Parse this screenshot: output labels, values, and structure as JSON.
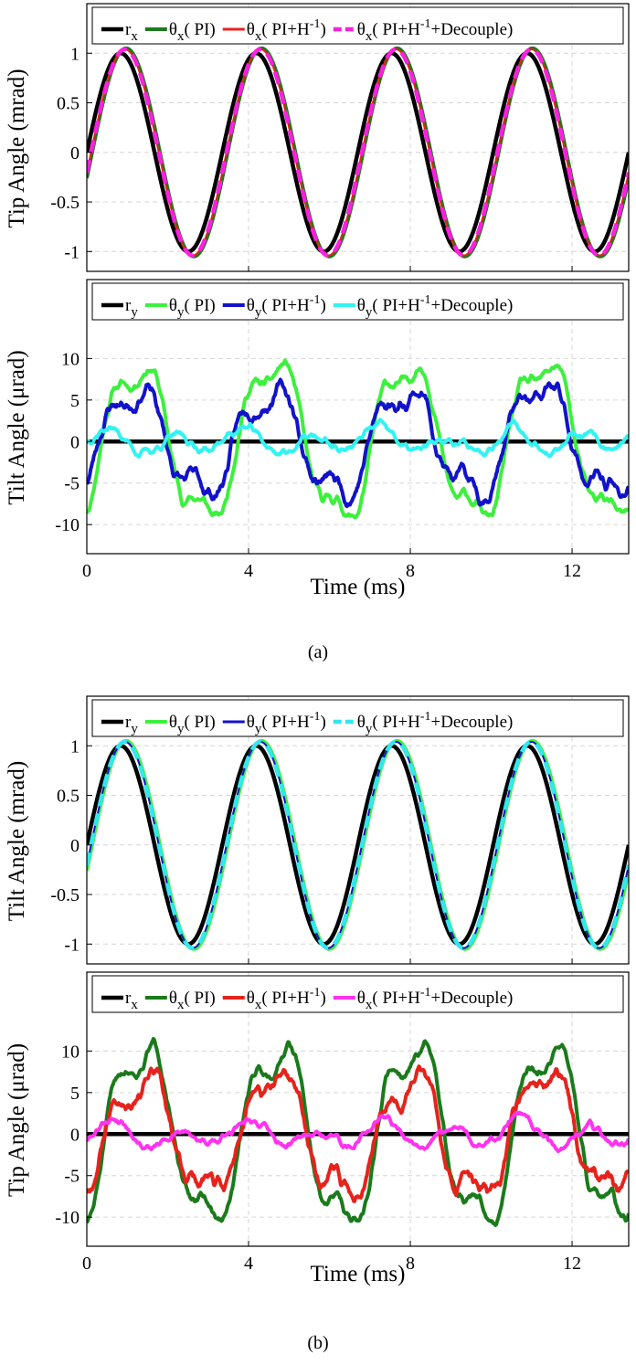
{
  "captions": {
    "a": "(a)",
    "b": "(b)"
  },
  "chart_data": [
    {
      "id": "a-top",
      "type": "line",
      "panel": "(a)",
      "title": "",
      "xlabel": "",
      "ylabel": "Tip Angle (mrad)",
      "xlim": [
        0,
        13.4
      ],
      "ylim": [
        -1.2,
        1.5
      ],
      "xticks": [
        0,
        4,
        8,
        12
      ],
      "xtick_labels": [
        "",
        "",
        "",
        ""
      ],
      "yticks": [
        1,
        0.5,
        0,
        -0.5,
        -1
      ],
      "ytick_labels": [
        "1",
        "0.5",
        "0",
        "-0.5",
        "-1"
      ],
      "grid": true,
      "legend_position": "top",
      "series": [
        {
          "key": "ref",
          "name": "r",
          "sub": "x",
          "after": "",
          "style": "solid",
          "color": "#000000",
          "width": 4.5,
          "signal": {
            "kind": "sine",
            "amp": 1.0,
            "phase": 0.0
          }
        },
        {
          "key": "pi",
          "name": "θ",
          "sub": "x",
          "after": "( PI)",
          "style": "solid",
          "color": "#1b7a1b",
          "width": 4,
          "signal": {
            "kind": "sine",
            "amp": 1.05,
            "phase": 0.38
          }
        },
        {
          "key": "pih",
          "name": "θ",
          "sub": "x",
          "after": "( PI+H^-1)",
          "style": "solid",
          "color": "#e5231c",
          "width": 2,
          "signal": {
            "kind": "sine",
            "amp": 1.04,
            "phase": 0.3
          }
        },
        {
          "key": "dec",
          "name": "θ",
          "sub": "x",
          "after": "( PI+H^-1+Decouple)",
          "style": "dash",
          "color": "#ff1fe0",
          "width": 4.5,
          "signal": {
            "kind": "sine",
            "amp": 1.04,
            "phase": 0.3
          }
        }
      ]
    },
    {
      "id": "a-bottom",
      "type": "line",
      "panel": "(a)",
      "title": "",
      "xlabel": "Time (ms)",
      "ylabel": "Tilt Angle (μrad)",
      "xlim": [
        0,
        13.4
      ],
      "ylim": [
        -13.5,
        19.5
      ],
      "xticks": [
        0,
        4,
        8,
        12
      ],
      "xtick_labels": [
        "0",
        "4",
        "8",
        "12"
      ],
      "yticks": [
        10,
        5,
        0,
        -5,
        -10
      ],
      "ytick_labels": [
        "10",
        "5",
        "0",
        "-5",
        "-10"
      ],
      "grid": true,
      "legend_position": "top",
      "series": [
        {
          "key": "ref",
          "name": "r",
          "sub": "y",
          "after": "",
          "style": "solid",
          "color": "#000000",
          "width": 4.5,
          "signal": {
            "kind": "zero"
          }
        },
        {
          "key": "pi",
          "name": "θ",
          "sub": "y",
          "after": "( PI)",
          "style": "solid",
          "color": "#3df03d",
          "width": 4,
          "signal": {
            "kind": "coupled",
            "amp": 10,
            "phase": 0.75,
            "noise": 0.9,
            "seed": 11
          }
        },
        {
          "key": "pih",
          "name": "θ",
          "sub": "y",
          "after": "( PI+H^-1)",
          "style": "solid",
          "color": "#1212cc",
          "width": 4,
          "signal": {
            "kind": "coupled",
            "amp": 6.8,
            "phase": 0.6,
            "noise": 1.2,
            "seed": 23
          }
        },
        {
          "key": "dec",
          "name": "θ",
          "sub": "y",
          "after": "( PI+H^-1+Decouple)",
          "style": "solid",
          "color": "#33f2f2",
          "width": 4,
          "signal": {
            "kind": "residual",
            "amp": 1.8,
            "phase": 0.2,
            "noise": 0.8,
            "seed": 37
          }
        }
      ]
    },
    {
      "id": "b-top",
      "type": "line",
      "panel": "(b)",
      "title": "",
      "xlabel": "",
      "ylabel": "Tilt Angle (mrad)",
      "xlim": [
        0,
        13.4
      ],
      "ylim": [
        -1.2,
        1.5
      ],
      "xticks": [
        0,
        4,
        8,
        12
      ],
      "xtick_labels": [
        "",
        "",
        "",
        ""
      ],
      "yticks": [
        1,
        0.5,
        0,
        -0.5,
        -1
      ],
      "ytick_labels": [
        "1",
        "0.5",
        "0",
        "-0.5",
        "-1"
      ],
      "grid": true,
      "legend_position": "top",
      "series": [
        {
          "key": "ref",
          "name": "r",
          "sub": "y",
          "after": "",
          "style": "solid",
          "color": "#000000",
          "width": 4.5,
          "signal": {
            "kind": "sine",
            "amp": 1.0,
            "phase": 0.0
          }
        },
        {
          "key": "pi",
          "name": "θ",
          "sub": "y",
          "after": "( PI)",
          "style": "solid",
          "color": "#3df03d",
          "width": 4,
          "signal": {
            "kind": "sine",
            "amp": 1.05,
            "phase": 0.38
          }
        },
        {
          "key": "pih",
          "name": "θ",
          "sub": "y",
          "after": "( PI+H^-1)",
          "style": "solid",
          "color": "#1212cc",
          "width": 2,
          "signal": {
            "kind": "sine",
            "amp": 1.04,
            "phase": 0.3
          }
        },
        {
          "key": "dec",
          "name": "θ",
          "sub": "y",
          "after": "( PI+H^-1+Decouple)",
          "style": "dash",
          "color": "#33e6f0",
          "width": 4.5,
          "signal": {
            "kind": "sine",
            "amp": 1.04,
            "phase": 0.3
          }
        }
      ]
    },
    {
      "id": "b-bottom",
      "type": "line",
      "panel": "(b)",
      "title": "",
      "xlabel": "Time (ms)",
      "ylabel": "Tip Angle (μrad)",
      "xlim": [
        0,
        13.4
      ],
      "ylim": [
        -13.5,
        19.5
      ],
      "xticks": [
        0,
        4,
        8,
        12
      ],
      "xtick_labels": [
        "0",
        "4",
        "8",
        "12"
      ],
      "yticks": [
        10,
        5,
        0,
        -5,
        -10
      ],
      "ytick_labels": [
        "10",
        "5",
        "0",
        "-5",
        "-10"
      ],
      "grid": true,
      "legend_position": "top",
      "series": [
        {
          "key": "ref",
          "name": "r",
          "sub": "x",
          "after": "",
          "style": "solid",
          "color": "#000000",
          "width": 4.5,
          "signal": {
            "kind": "zero"
          }
        },
        {
          "key": "pi",
          "name": "θ",
          "sub": "x",
          "after": "( PI)",
          "style": "solid",
          "color": "#1b7a1b",
          "width": 4,
          "signal": {
            "kind": "coupled",
            "amp": 11.5,
            "phase": 0.95,
            "noise": 0.9,
            "seed": 51
          }
        },
        {
          "key": "pih",
          "name": "θ",
          "sub": "x",
          "after": "( PI+H^-1)",
          "style": "solid",
          "color": "#e5231c",
          "width": 4,
          "signal": {
            "kind": "coupled",
            "amp": 7.5,
            "phase": 0.85,
            "noise": 1.3,
            "seed": 67
          }
        },
        {
          "key": "dec",
          "name": "θ",
          "sub": "x",
          "after": "( PI+H^-1+Decouple)",
          "style": "solid",
          "color": "#ff33ee",
          "width": 4,
          "signal": {
            "kind": "residual",
            "amp": 2.2,
            "phase": 0.5,
            "noise": 0.8,
            "seed": 79
          }
        }
      ]
    }
  ],
  "signal_period_ms": 3.35
}
